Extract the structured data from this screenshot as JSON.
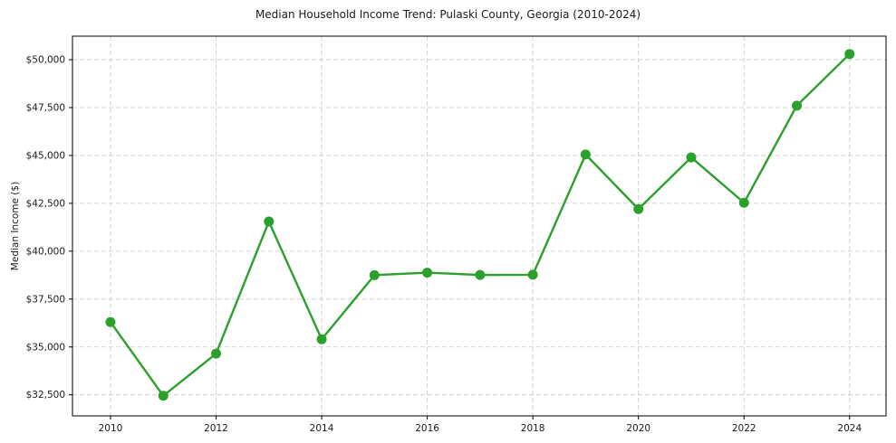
{
  "chart_data": {
    "type": "line",
    "title": "Median Household Income Trend: Pulaski County, Georgia (2010-2024)",
    "xlabel": "",
    "ylabel": "Median Income ($)",
    "series_name": "Median Household Income",
    "x": [
      2010,
      2011,
      2012,
      2013,
      2014,
      2015,
      2016,
      2017,
      2018,
      2019,
      2020,
      2021,
      2022,
      2023,
      2024
    ],
    "y": [
      36300,
      32450,
      34650,
      41550,
      35400,
      38750,
      38880,
      38760,
      38770,
      45050,
      42200,
      44900,
      42530,
      47600,
      50300
    ],
    "line_color": "#2ca02c",
    "marker_color": "#2ca02c",
    "marker": "circle",
    "grid": true,
    "grid_color": "#c9c9c9",
    "grid_style": "dashed",
    "legend": "none",
    "xlim": [
      2009.28,
      2024.69
    ],
    "ylim": [
      31400,
      51230
    ],
    "xticks": [
      2010,
      2012,
      2014,
      2016,
      2018,
      2020,
      2022,
      2024
    ],
    "xtick_labels": [
      "2010",
      "2012",
      "2014",
      "2016",
      "2018",
      "2020",
      "2022",
      "2024"
    ],
    "yticks": [
      32500,
      35000,
      37500,
      40000,
      42500,
      45000,
      47500,
      50000
    ],
    "ytick_labels": [
      "$32,500",
      "$35,000",
      "$37,500",
      "$40,000",
      "$42,500",
      "$45,000",
      "$47,500",
      "$50,000"
    ],
    "axis_color": "#000000",
    "text_color": "#1a1a1a"
  }
}
